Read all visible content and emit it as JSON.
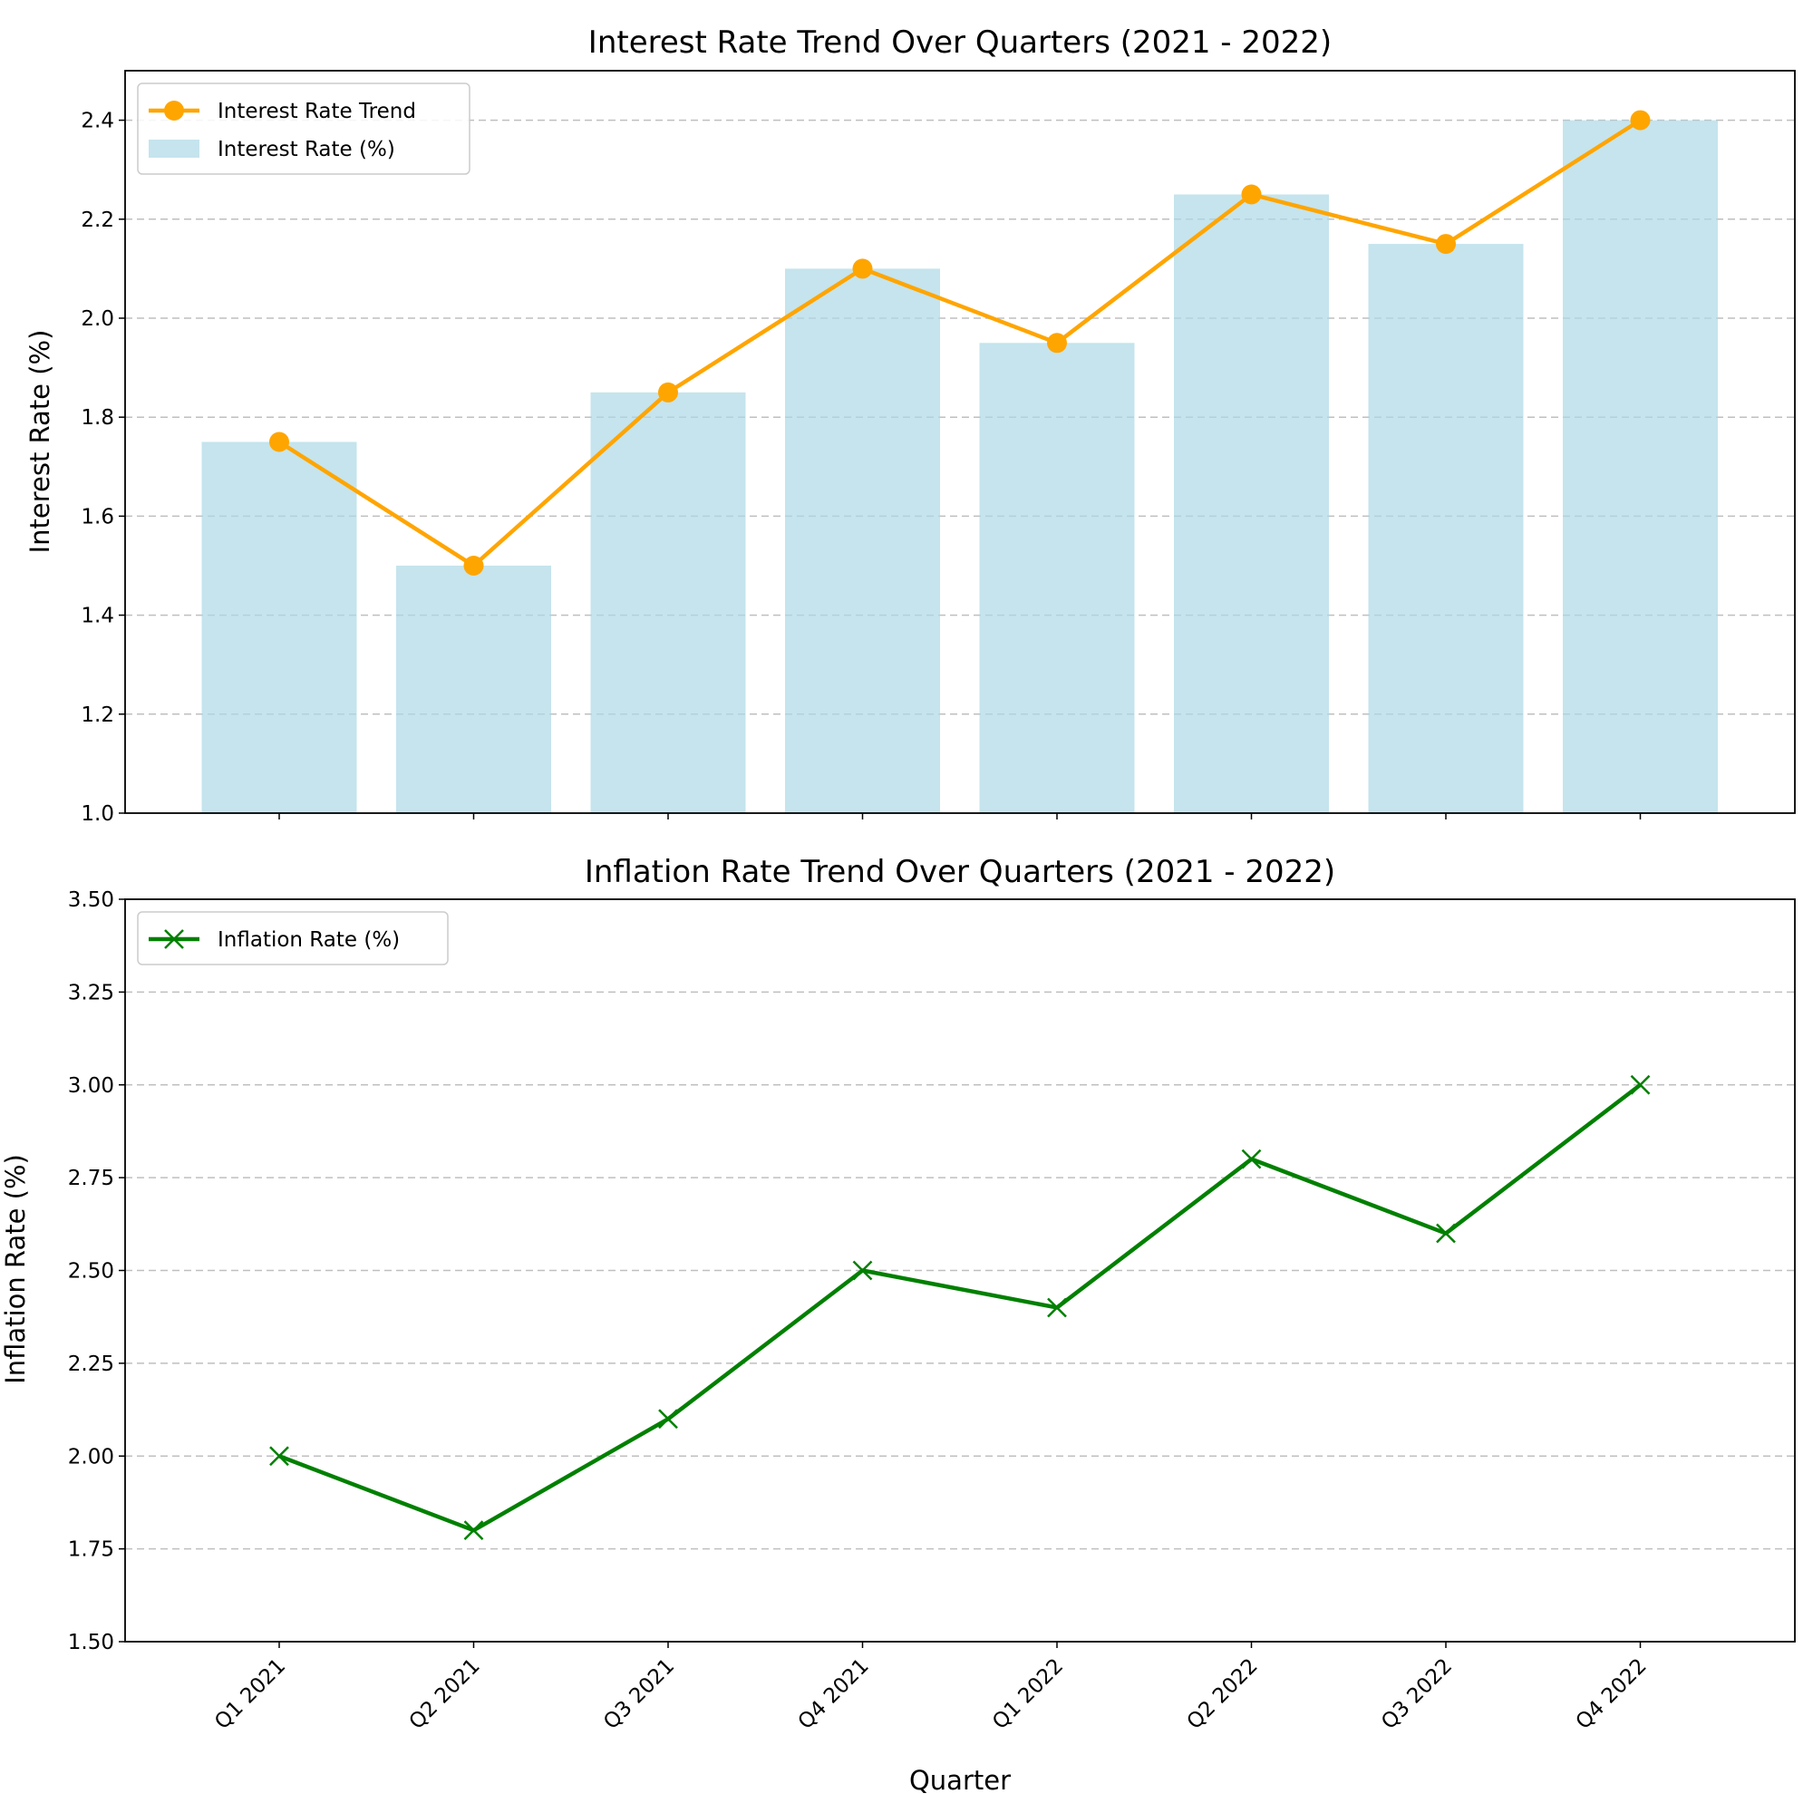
{
  "chart_data": [
    {
      "type": "bar",
      "title": "Interest Rate Trend Over Quarters (2021 - 2022)",
      "xlabel": "",
      "ylabel": "Interest Rate (%)",
      "categories": [
        "Q1 2021",
        "Q2 2021",
        "Q3 2021",
        "Q4 2021",
        "Q1 2022",
        "Q2 2022",
        "Q3 2022",
        "Q4 2022"
      ],
      "ylim": [
        1.0,
        2.5
      ],
      "yticks": [
        "1.0",
        "1.2",
        "1.4",
        "1.6",
        "1.8",
        "2.0",
        "2.2",
        "2.4"
      ],
      "grid": "y dashed",
      "legend_position": "top-left",
      "series": [
        {
          "name": "Interest Rate Trend",
          "type": "line",
          "marker": "circle",
          "color": "#FFA500",
          "values": [
            1.75,
            1.5,
            1.85,
            2.1,
            1.95,
            2.25,
            2.15,
            2.4
          ]
        },
        {
          "name": "Interest Rate (%)",
          "type": "bar",
          "color": "#ADD8E6",
          "opacity": 0.7,
          "values": [
            1.75,
            1.5,
            1.85,
            2.1,
            1.95,
            2.25,
            2.15,
            2.4
          ]
        }
      ]
    },
    {
      "type": "line",
      "title": "Inflation Rate Trend Over Quarters (2021 - 2022)",
      "xlabel": "Quarter",
      "ylabel": "Inflation Rate (%)",
      "categories": [
        "Q1 2021",
        "Q2 2021",
        "Q3 2021",
        "Q4 2021",
        "Q1 2022",
        "Q2 2022",
        "Q3 2022",
        "Q4 2022"
      ],
      "ylim": [
        1.5,
        3.5
      ],
      "yticks": [
        "1.50",
        "1.75",
        "2.00",
        "2.25",
        "2.50",
        "2.75",
        "3.00",
        "3.25",
        "3.50"
      ],
      "grid": "y dashed",
      "legend_position": "top-left",
      "series": [
        {
          "name": "Inflation Rate (%)",
          "type": "line",
          "marker": "x",
          "color": "#008000",
          "values": [
            2.0,
            1.8,
            2.1,
            2.5,
            2.4,
            2.8,
            2.6,
            3.0
          ]
        }
      ]
    }
  ]
}
